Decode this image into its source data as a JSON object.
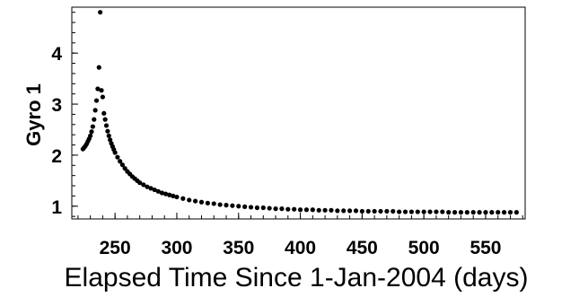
{
  "chart_data": {
    "type": "scatter",
    "title": "",
    "xlabel": "Elapsed Time Since 1-Jan-2004 (days)",
    "ylabel": "Gyro 1",
    "xlim": [
      215,
      582
    ],
    "ylim": [
      0.75,
      4.9
    ],
    "x_ticks": [
      250,
      300,
      350,
      400,
      450,
      500,
      550
    ],
    "y_ticks": [
      1,
      2,
      3,
      4
    ],
    "grid": false,
    "legend": "none",
    "marker_color": "#000000",
    "peak": {
      "x": 238,
      "y": 4.8
    },
    "series": [
      {
        "name": "",
        "points": [
          [
            224,
            2.12
          ],
          [
            225,
            2.15
          ],
          [
            226,
            2.18
          ],
          [
            227,
            2.22
          ],
          [
            228,
            2.27
          ],
          [
            229,
            2.32
          ],
          [
            230,
            2.38
          ],
          [
            231,
            2.46
          ],
          [
            232,
            2.56
          ],
          [
            233,
            2.7
          ],
          [
            234,
            2.88
          ],
          [
            235,
            3.07
          ],
          [
            236,
            3.3
          ],
          [
            237,
            3.72
          ],
          [
            238,
            4.8
          ],
          [
            239,
            3.27
          ],
          [
            240,
            3.14
          ],
          [
            241,
            2.82
          ],
          [
            242,
            2.7
          ],
          [
            243,
            2.58
          ],
          [
            244,
            2.47
          ],
          [
            245,
            2.38
          ],
          [
            246,
            2.3
          ],
          [
            247,
            2.23
          ],
          [
            248,
            2.17
          ],
          [
            249,
            2.11
          ],
          [
            250,
            2.05
          ],
          [
            252,
            1.96
          ],
          [
            254,
            1.88
          ],
          [
            256,
            1.81
          ],
          [
            258,
            1.74
          ],
          [
            260,
            1.68
          ],
          [
            262,
            1.63
          ],
          [
            264,
            1.58
          ],
          [
            266,
            1.54
          ],
          [
            268,
            1.5
          ],
          [
            270,
            1.46
          ],
          [
            273,
            1.42
          ],
          [
            276,
            1.38
          ],
          [
            279,
            1.35
          ],
          [
            282,
            1.32
          ],
          [
            285,
            1.29
          ],
          [
            288,
            1.26
          ],
          [
            291,
            1.24
          ],
          [
            294,
            1.22
          ],
          [
            297,
            1.2
          ],
          [
            300,
            1.18
          ],
          [
            305,
            1.15
          ],
          [
            310,
            1.12
          ],
          [
            315,
            1.1
          ],
          [
            320,
            1.08
          ],
          [
            325,
            1.06
          ],
          [
            330,
            1.05
          ],
          [
            335,
            1.03
          ],
          [
            340,
            1.02
          ],
          [
            345,
            1.01
          ],
          [
            350,
            1.0
          ],
          [
            355,
            0.99
          ],
          [
            360,
            0.98
          ],
          [
            365,
            0.97
          ],
          [
            370,
            0.97
          ],
          [
            375,
            0.96
          ],
          [
            380,
            0.95
          ],
          [
            385,
            0.95
          ],
          [
            390,
            0.94
          ],
          [
            395,
            0.94
          ],
          [
            400,
            0.93
          ],
          [
            405,
            0.93
          ],
          [
            410,
            0.93
          ],
          [
            415,
            0.92
          ],
          [
            420,
            0.92
          ],
          [
            425,
            0.92
          ],
          [
            430,
            0.91
          ],
          [
            435,
            0.91
          ],
          [
            440,
            0.91
          ],
          [
            445,
            0.91
          ],
          [
            450,
            0.9
          ],
          [
            455,
            0.9
          ],
          [
            460,
            0.9
          ],
          [
            465,
            0.9
          ],
          [
            470,
            0.9
          ],
          [
            475,
            0.9
          ],
          [
            480,
            0.89
          ],
          [
            485,
            0.89
          ],
          [
            490,
            0.89
          ],
          [
            495,
            0.89
          ],
          [
            500,
            0.89
          ],
          [
            505,
            0.89
          ],
          [
            510,
            0.89
          ],
          [
            515,
            0.89
          ],
          [
            520,
            0.88
          ],
          [
            525,
            0.88
          ],
          [
            530,
            0.88
          ],
          [
            535,
            0.88
          ],
          [
            540,
            0.88
          ],
          [
            545,
            0.88
          ],
          [
            550,
            0.88
          ],
          [
            555,
            0.88
          ],
          [
            560,
            0.88
          ],
          [
            565,
            0.88
          ],
          [
            570,
            0.88
          ],
          [
            575,
            0.88
          ]
        ]
      }
    ]
  }
}
